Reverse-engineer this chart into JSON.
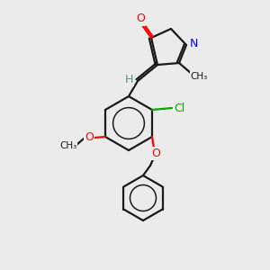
{
  "bg_color": "#ebebeb",
  "bond_color": "#1a1a1a",
  "atom_colors": {
    "O": "#ff0000",
    "N": "#0000ff",
    "Cl": "#00aa00",
    "H": "#5f8f8f",
    "C": "#1a1a1a"
  },
  "figsize": [
    3.0,
    3.0
  ],
  "dpi": 100
}
